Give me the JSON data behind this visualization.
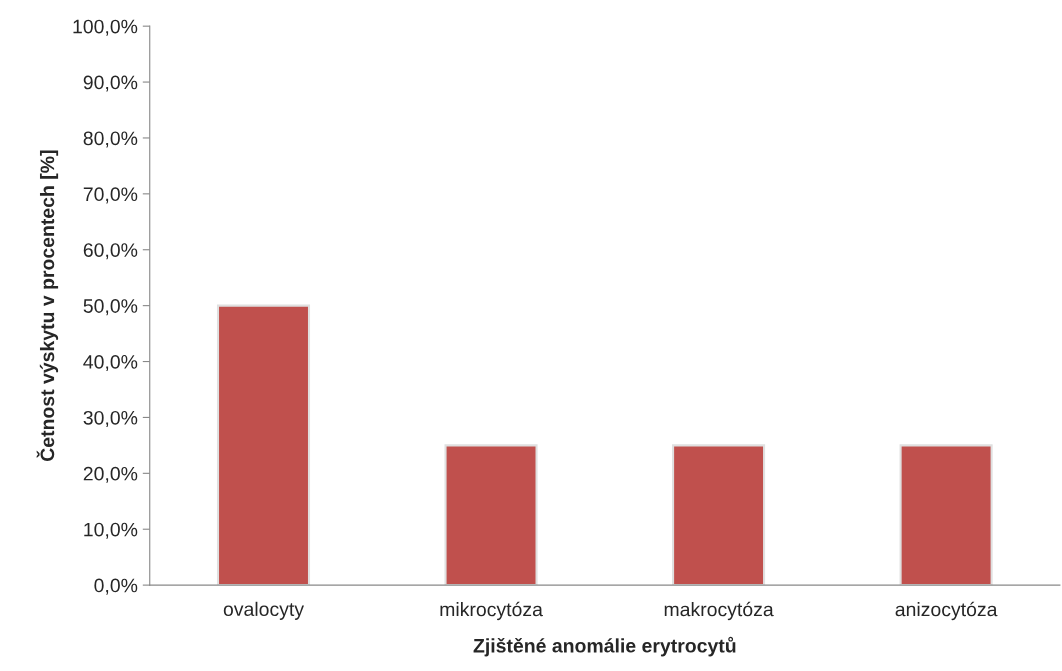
{
  "chart_data": {
    "type": "bar",
    "xlabel": "Zjištěné anomálie erytrocytů",
    "ylabel": "Četnost výskytu v procentech [%]",
    "categories": [
      "ovalocyty",
      "mikrocytóza",
      "makrocytóza",
      "anizocytóza"
    ],
    "values": [
      50,
      25,
      25,
      25
    ],
    "color": "#c0504d",
    "ylim": [
      0,
      100
    ],
    "yticks": [
      {
        "value": 0,
        "label": "0,0%"
      },
      {
        "value": 10,
        "label": "10,0%"
      },
      {
        "value": 20,
        "label": "20,0%"
      },
      {
        "value": 30,
        "label": "30,0%"
      },
      {
        "value": 40,
        "label": "40,0%"
      },
      {
        "value": 50,
        "label": "50,0%"
      },
      {
        "value": 60,
        "label": "60,0%"
      },
      {
        "value": 70,
        "label": "70,0%"
      },
      {
        "value": 80,
        "label": "80,0%"
      },
      {
        "value": 90,
        "label": "90,0%"
      },
      {
        "value": 100,
        "label": "100,0%"
      }
    ],
    "grid": false,
    "legend": false
  }
}
